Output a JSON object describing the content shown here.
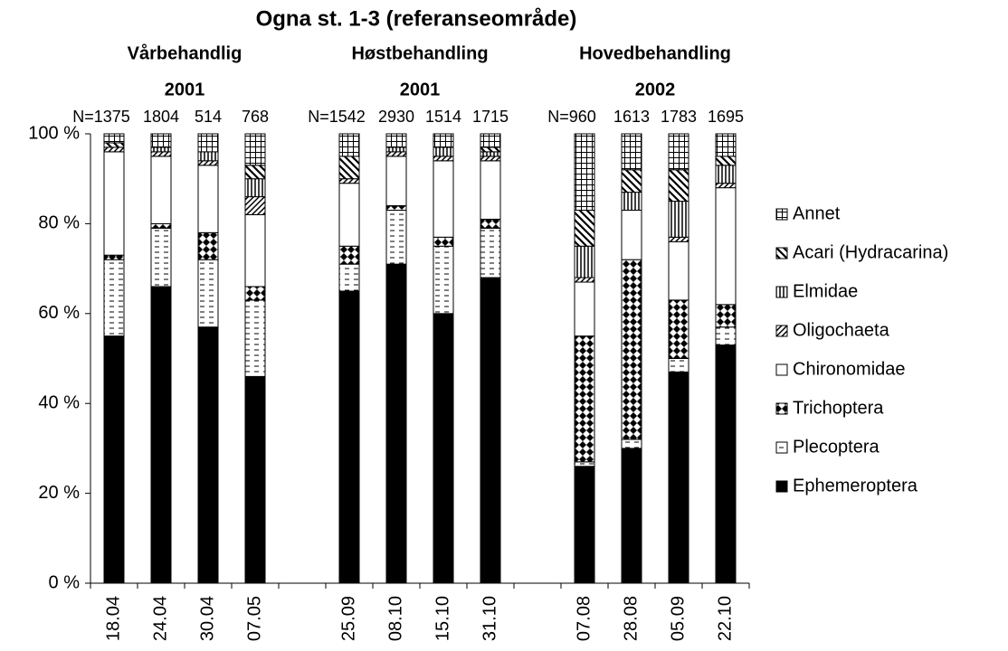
{
  "chart_data": {
    "type": "stacked-bar-percent",
    "title": "Ogna st. 1-3 (referanseområde)",
    "groups": [
      {
        "name": "Vårbehandlig",
        "year": "2001"
      },
      {
        "name": "Høstbehandling",
        "year": "2001"
      },
      {
        "name": "Hovedbehandling",
        "year": "2002"
      }
    ],
    "n_labels": [
      "N=1375",
      "1804",
      "514",
      "768",
      null,
      "N=1542",
      "2930",
      "1514",
      "1715",
      null,
      "N=960",
      "1613",
      "1783",
      "1695"
    ],
    "categories": [
      "18.04",
      "24.04",
      "30.04",
      "07.05",
      null,
      "25.09",
      "08.10",
      "15.10",
      "31.10",
      null,
      "07.08",
      "28.08",
      "05.09",
      "22.10"
    ],
    "series": [
      {
        "name": "Ephemeroptera",
        "color": "#000000",
        "pattern": "solid",
        "values": [
          55,
          66,
          57,
          46,
          null,
          65,
          71,
          60,
          68,
          null,
          26,
          30,
          47,
          53
        ]
      },
      {
        "name": "Plecoptera",
        "color": "#000000",
        "pattern": "dash",
        "values": [
          17,
          13,
          15,
          17,
          null,
          6,
          12,
          15,
          11,
          null,
          1,
          2,
          3,
          4
        ]
      },
      {
        "name": "Trichoptera",
        "color": "#000000",
        "pattern": "diamond",
        "values": [
          1,
          1,
          6,
          3,
          null,
          4,
          1,
          2,
          2,
          null,
          28,
          40,
          13,
          5
        ]
      },
      {
        "name": "Chironomidae",
        "color": "#ffffff",
        "pattern": "blank",
        "values": [
          23,
          15,
          15,
          16,
          null,
          14,
          11,
          17,
          13,
          null,
          12,
          11,
          13,
          26
        ]
      },
      {
        "name": "Oligochaeta",
        "color": "#000000",
        "pattern": "hatch",
        "values": [
          1,
          1,
          1,
          4,
          null,
          1,
          1,
          1,
          1,
          null,
          1,
          0,
          1,
          1
        ]
      },
      {
        "name": "Elmidae",
        "color": "#000000",
        "pattern": "vline",
        "values": [
          0,
          1,
          2,
          4,
          null,
          0,
          1,
          2,
          1,
          null,
          7,
          4,
          8,
          4
        ]
      },
      {
        "name": "Acari (Hydracarina)",
        "color": "#000000",
        "pattern": "bhatch",
        "values": [
          1,
          0,
          0,
          3,
          null,
          5,
          0,
          0,
          1,
          null,
          8,
          5,
          7,
          2
        ]
      },
      {
        "name": "Annet",
        "color": "#000000",
        "pattern": "grid",
        "values": [
          2,
          3,
          4,
          7,
          null,
          5,
          3,
          3,
          3,
          null,
          17,
          8,
          8,
          5
        ]
      }
    ],
    "ylim": [
      0,
      100
    ],
    "yticks": [
      {
        "value": 0,
        "label": "0 %"
      },
      {
        "value": 20,
        "label": "20 %"
      },
      {
        "value": 40,
        "label": "40 %"
      },
      {
        "value": 60,
        "label": "60 %"
      },
      {
        "value": 80,
        "label": "80 %"
      },
      {
        "value": 100,
        "label": "100 %"
      }
    ],
    "legend": "right"
  }
}
